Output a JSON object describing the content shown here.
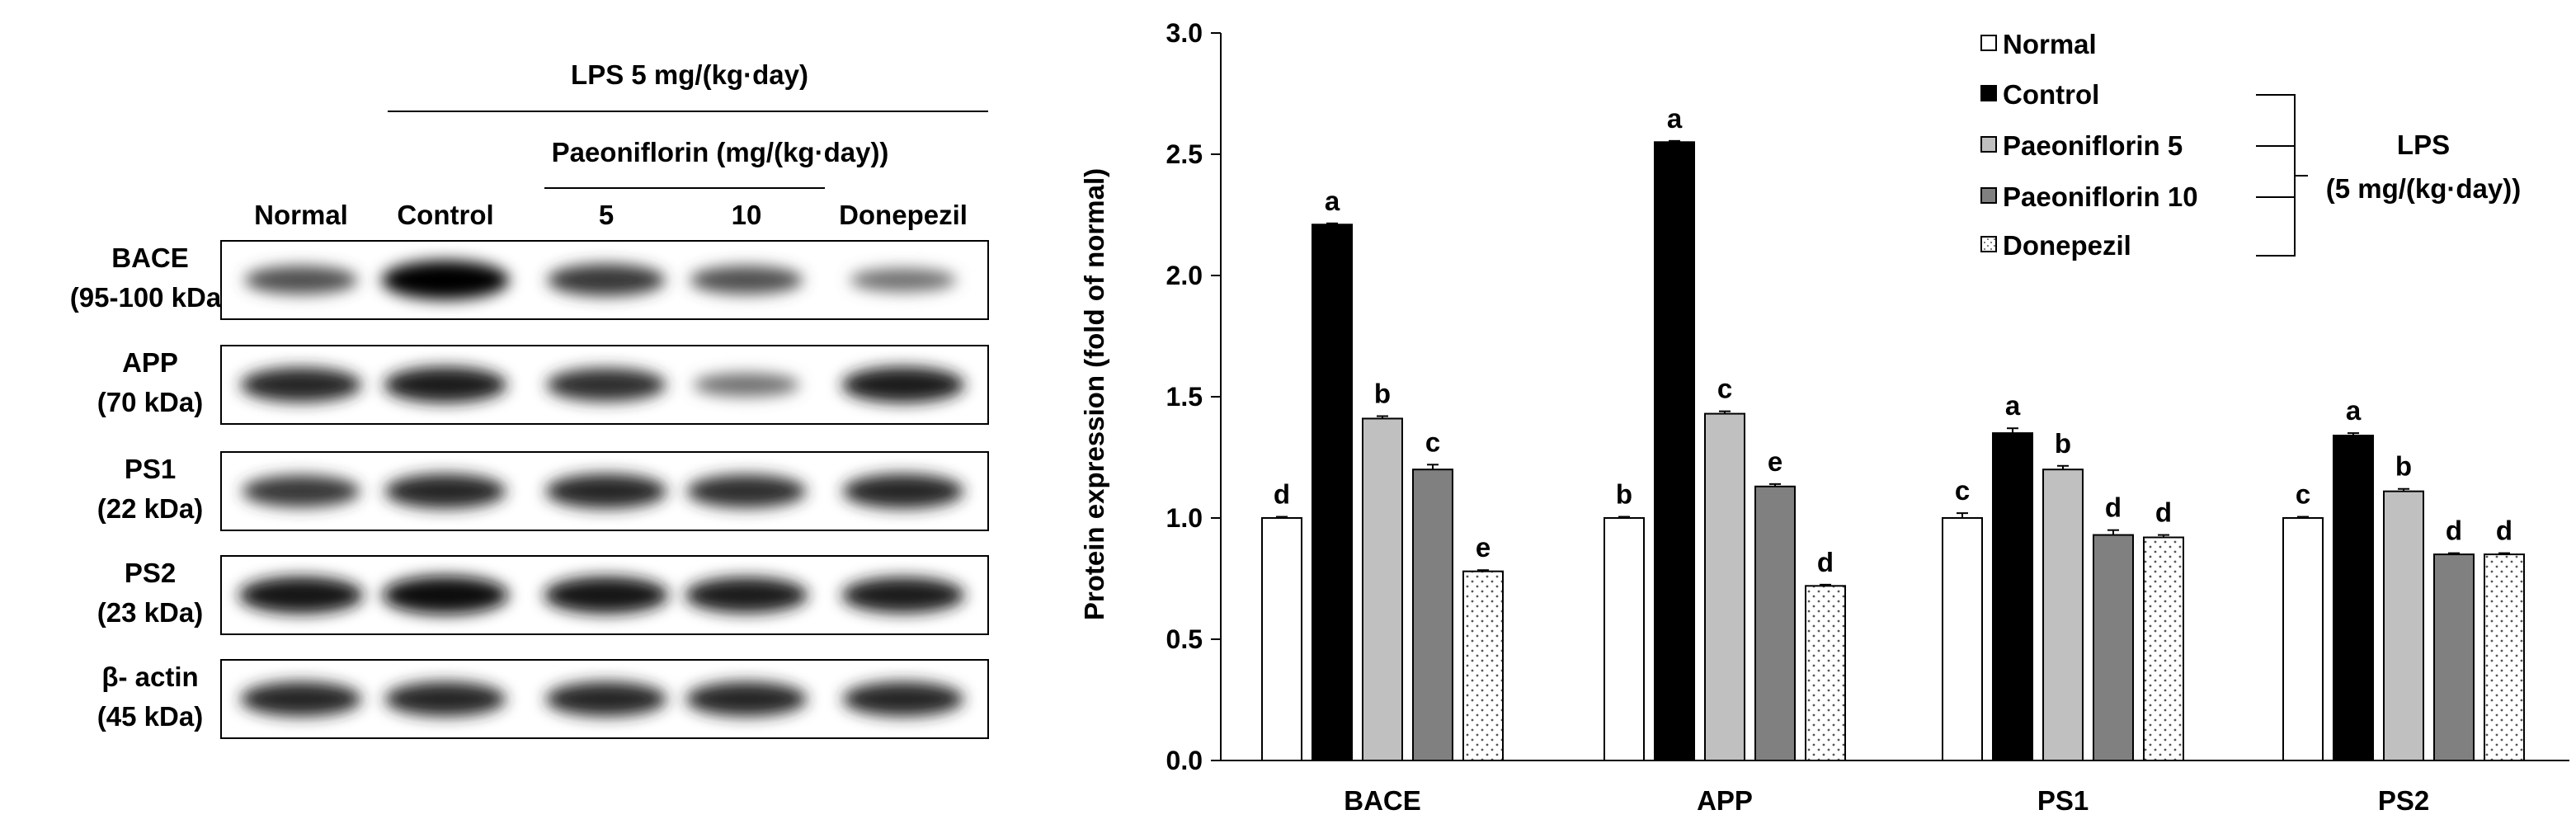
{
  "blot": {
    "lps_header": "LPS 5 mg/(kg·day)",
    "paeoniflorin_header": "Paeoniflorin (mg/(kg·day))",
    "lane_labels": [
      "Normal",
      "Control",
      "5",
      "10",
      "Donepezil"
    ],
    "proteins": [
      {
        "name": "BACE",
        "size": "(95-100 kDa)",
        "band_intensity": [
          0.55,
          1.0,
          0.7,
          0.55,
          0.35
        ]
      },
      {
        "name": "APP",
        "size": "(70 kDa)",
        "band_intensity": [
          0.8,
          0.85,
          0.75,
          0.35,
          0.85
        ]
      },
      {
        "name": "PS1",
        "size": "(22 kDa)",
        "band_intensity": [
          0.7,
          0.8,
          0.8,
          0.75,
          0.8
        ]
      },
      {
        "name": "PS2",
        "size": "(23 kDa)",
        "band_intensity": [
          0.9,
          0.95,
          0.9,
          0.85,
          0.85
        ]
      },
      {
        "name": "β- actin",
        "size": "(45 kDa)",
        "band_intensity": [
          0.8,
          0.8,
          0.8,
          0.8,
          0.8
        ]
      }
    ]
  },
  "chart_data": {
    "type": "bar",
    "title": "",
    "xlabel": "",
    "ylabel": "Protein expression (fold of normal)",
    "ylim": [
      0,
      3.0
    ],
    "yticks": [
      "0.0",
      "0.5",
      "1.0",
      "1.5",
      "2.0",
      "2.5",
      "3.0"
    ],
    "grid": false,
    "categories": [
      "BACE",
      "APP",
      "PS1",
      "PS2"
    ],
    "series": [
      {
        "name": "Normal",
        "fill": "#ffffff",
        "pattern": "none",
        "values": [
          1.0,
          1.0,
          1.0,
          1.0
        ],
        "errors": [
          0.005,
          0.005,
          0.02,
          0.005
        ],
        "letters": [
          "d",
          "b",
          "c",
          "c"
        ]
      },
      {
        "name": "Control",
        "fill": "#000000",
        "pattern": "none",
        "values": [
          2.21,
          2.55,
          1.35,
          1.34
        ],
        "errors": [
          0.005,
          0.005,
          0.02,
          0.01
        ],
        "letters": [
          "a",
          "a",
          "a",
          "a"
        ]
      },
      {
        "name": "Paeoniflorin 5",
        "fill": "#c0c0c0",
        "pattern": "none",
        "values": [
          1.41,
          1.43,
          1.2,
          1.11
        ],
        "errors": [
          0.01,
          0.01,
          0.015,
          0.01
        ],
        "letters": [
          "b",
          "c",
          "b",
          "b"
        ]
      },
      {
        "name": "Paeoniflorin 10",
        "fill": "#808080",
        "pattern": "none",
        "values": [
          1.2,
          1.13,
          0.93,
          0.85
        ],
        "errors": [
          0.02,
          0.01,
          0.02,
          0.005
        ],
        "letters": [
          "c",
          "e",
          "d",
          "d"
        ]
      },
      {
        "name": "Donepezil",
        "fill": "#ffffff",
        "pattern": "dots",
        "values": [
          0.78,
          0.72,
          0.92,
          0.85
        ],
        "errors": [
          0.005,
          0.005,
          0.01,
          0.005
        ],
        "letters": [
          "e",
          "d",
          "d",
          "d"
        ]
      }
    ],
    "legend": {
      "position": "top-right",
      "group_label_line1": "LPS",
      "group_label_line2": "(5 mg/(kg·day))"
    }
  }
}
